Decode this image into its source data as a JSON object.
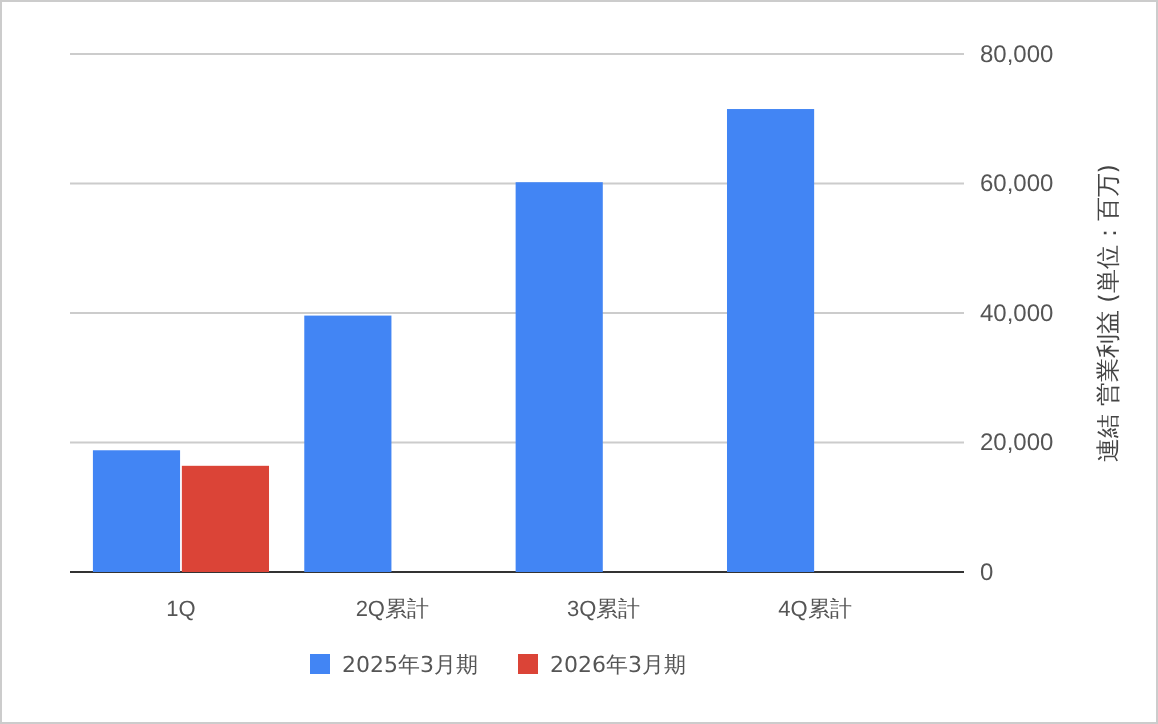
{
  "chart_data": {
    "type": "bar",
    "ylabel": "連結 営業利益 (単位：百万)",
    "categories": [
      "1Q",
      "2Q累計",
      "3Q累計",
      "4Q累計"
    ],
    "series": [
      {
        "name": "2025年3月期",
        "color": "#4285f4",
        "values": [
          18800,
          39600,
          60200,
          71500
        ]
      },
      {
        "name": "2026年3月期",
        "color": "#db4437",
        "values": [
          16400,
          null,
          null,
          null
        ]
      }
    ],
    "ylim": [
      0,
      80000
    ],
    "yticks": [
      {
        "value": 0,
        "label": "0"
      },
      {
        "value": 20000,
        "label": "20,000"
      },
      {
        "value": 40000,
        "label": "40,000"
      },
      {
        "value": 60000,
        "label": "60,000"
      },
      {
        "value": 80000,
        "label": "80,000"
      }
    ],
    "grid": "y",
    "legend": "bottom"
  }
}
